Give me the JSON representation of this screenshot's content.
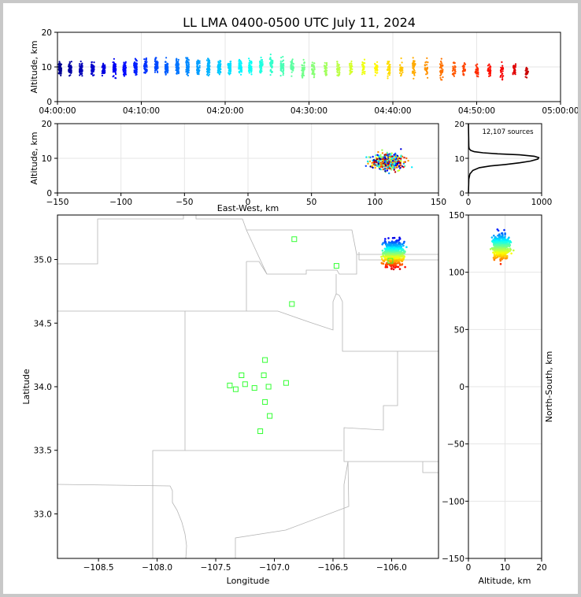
{
  "figure": {
    "title": "LL LMA 0400-0500 UTC July 11, 2024",
    "source_count_label": "12,107 sources"
  },
  "chart_data": [
    {
      "panel": "altitude-vs-time",
      "type": "scatter",
      "xlabel": "",
      "ylabel": "Altitude, km",
      "xlim": [
        "04:00:00",
        "05:00:00"
      ],
      "ylim": [
        0,
        20
      ],
      "xticks": [
        "04:00:00",
        "04:10:00",
        "04:20:00",
        "04:30:00",
        "04:40:00",
        "04:50:00",
        "05:00:00"
      ],
      "yticks": [
        "0",
        "10",
        "20"
      ],
      "color_by": "time",
      "colormap": [
        "#00008b",
        "#0000ff",
        "#0080ff",
        "#00ffff",
        "#80ff80",
        "#ffff00",
        "#ff8000",
        "#ff0000",
        "#8b0000"
      ],
      "flash_clusters": [
        {
          "minute": 0.3,
          "center_km": 9.5,
          "spread_km": 2.5,
          "n": 60
        },
        {
          "minute": 1.5,
          "center_km": 9.5,
          "spread_km": 2.5,
          "n": 55
        },
        {
          "minute": 2.8,
          "center_km": 9.5,
          "spread_km": 2.5,
          "n": 50
        },
        {
          "minute": 4.2,
          "center_km": 9.5,
          "spread_km": 2.5,
          "n": 55
        },
        {
          "minute": 5.5,
          "center_km": 9.5,
          "spread_km": 2.5,
          "n": 50
        },
        {
          "minute": 6.8,
          "center_km": 9.5,
          "spread_km": 3,
          "n": 55
        },
        {
          "minute": 8.0,
          "center_km": 9.5,
          "spread_km": 3,
          "n": 60
        },
        {
          "minute": 9.3,
          "center_km": 10,
          "spread_km": 3,
          "n": 60
        },
        {
          "minute": 10.5,
          "center_km": 10,
          "spread_km": 3,
          "n": 55
        },
        {
          "minute": 11.8,
          "center_km": 10,
          "spread_km": 3,
          "n": 60
        },
        {
          "minute": 13.0,
          "center_km": 10,
          "spread_km": 3,
          "n": 60
        },
        {
          "minute": 14.3,
          "center_km": 10,
          "spread_km": 3,
          "n": 65
        },
        {
          "minute": 15.5,
          "center_km": 10,
          "spread_km": 3,
          "n": 60
        },
        {
          "minute": 16.8,
          "center_km": 10,
          "spread_km": 3,
          "n": 55
        },
        {
          "minute": 18.0,
          "center_km": 10,
          "spread_km": 3,
          "n": 60
        },
        {
          "minute": 19.3,
          "center_km": 10,
          "spread_km": 3,
          "n": 60
        },
        {
          "minute": 20.5,
          "center_km": 10,
          "spread_km": 3,
          "n": 55
        },
        {
          "minute": 21.8,
          "center_km": 10,
          "spread_km": 3,
          "n": 55
        },
        {
          "minute": 23.0,
          "center_km": 10,
          "spread_km": 3,
          "n": 55
        },
        {
          "minute": 24.3,
          "center_km": 10.5,
          "spread_km": 3,
          "n": 55
        },
        {
          "minute": 25.5,
          "center_km": 10.5,
          "spread_km": 3,
          "n": 50
        },
        {
          "minute": 26.8,
          "center_km": 10,
          "spread_km": 3,
          "n": 50
        },
        {
          "minute": 28.0,
          "center_km": 10,
          "spread_km": 3,
          "n": 45
        },
        {
          "minute": 29.3,
          "center_km": 9.5,
          "spread_km": 3,
          "n": 45
        },
        {
          "minute": 30.5,
          "center_km": 9.5,
          "spread_km": 3,
          "n": 40
        },
        {
          "minute": 32.0,
          "center_km": 9.5,
          "spread_km": 3,
          "n": 35
        },
        {
          "minute": 33.5,
          "center_km": 9.5,
          "spread_km": 3,
          "n": 35
        },
        {
          "minute": 35.0,
          "center_km": 9.5,
          "spread_km": 3,
          "n": 35
        },
        {
          "minute": 36.5,
          "center_km": 9.5,
          "spread_km": 3,
          "n": 30
        },
        {
          "minute": 38.0,
          "center_km": 9.5,
          "spread_km": 3,
          "n": 30
        },
        {
          "minute": 39.5,
          "center_km": 9.5,
          "spread_km": 3,
          "n": 30
        },
        {
          "minute": 41.0,
          "center_km": 9.5,
          "spread_km": 3,
          "n": 30
        },
        {
          "minute": 42.5,
          "center_km": 9.5,
          "spread_km": 4,
          "n": 40
        },
        {
          "minute": 44.0,
          "center_km": 9.5,
          "spread_km": 3,
          "n": 25
        },
        {
          "minute": 45.8,
          "center_km": 9.5,
          "spread_km": 4,
          "n": 35
        },
        {
          "minute": 47.3,
          "center_km": 9.5,
          "spread_km": 3,
          "n": 30
        },
        {
          "minute": 48.5,
          "center_km": 9,
          "spread_km": 3,
          "n": 30
        },
        {
          "minute": 50.0,
          "center_km": 9,
          "spread_km": 3,
          "n": 30
        },
        {
          "minute": 51.5,
          "center_km": 9,
          "spread_km": 3,
          "n": 30
        },
        {
          "minute": 53.0,
          "center_km": 9,
          "spread_km": 3,
          "n": 25
        },
        {
          "minute": 54.5,
          "center_km": 9,
          "spread_km": 3,
          "n": 30
        },
        {
          "minute": 56.0,
          "center_km": 8.5,
          "spread_km": 2,
          "n": 20
        }
      ]
    },
    {
      "panel": "altitude-vs-east-west",
      "type": "scatter",
      "xlabel": "East-West, km",
      "ylabel": "Altitude, km",
      "xlim": [
        -150,
        150
      ],
      "ylim": [
        0,
        20
      ],
      "xticks": [
        "−150",
        "−100",
        "−50",
        "0",
        "50",
        "100",
        "150"
      ],
      "yticks": [
        "0",
        "10",
        "20"
      ],
      "color_by": "time",
      "cluster": {
        "x_center_km": 110,
        "x_spread_km": 15,
        "alt_center_km": 9,
        "alt_spread_km": 3
      }
    },
    {
      "panel": "altitude-histogram",
      "type": "line",
      "xlim": [
        0,
        1000
      ],
      "ylim": [
        0,
        20
      ],
      "xticks": [
        "0",
        "1000"
      ],
      "yticks": [
        "0",
        "10",
        "20"
      ],
      "x": [
        0,
        5,
        20,
        60,
        150,
        300,
        500,
        700,
        850,
        950,
        960,
        900,
        700,
        400,
        200,
        80,
        30,
        10,
        5,
        0
      ],
      "y": [
        0,
        4,
        5.5,
        6.5,
        7.3,
        7.8,
        8.2,
        8.7,
        9.2,
        9.8,
        10.2,
        10.6,
        11.0,
        11.3,
        11.6,
        11.9,
        12.3,
        12.8,
        13.5,
        20
      ]
    },
    {
      "panel": "plan-view",
      "type": "scatter",
      "xlabel": "Longitude",
      "ylabel": "Latitude",
      "xlim": [
        -108.85,
        -105.6
      ],
      "ylim": [
        32.65,
        35.35
      ],
      "xticks": [
        "−108.5",
        "−108.0",
        "−107.5",
        "−107.0",
        "−106.5",
        "−106.0"
      ],
      "yticks": [
        "33.0",
        "33.5",
        "34.0",
        "34.5",
        "35.0"
      ],
      "cluster": {
        "lon_center": -105.98,
        "lon_spread": 0.12,
        "lat_center": 35.05,
        "lat_spread": 0.14
      },
      "stations": [
        {
          "lon": -106.83,
          "lat": 35.16
        },
        {
          "lon": -106.47,
          "lat": 34.95
        },
        {
          "lon": -106.85,
          "lat": 34.65
        },
        {
          "lon": -107.08,
          "lat": 34.21
        },
        {
          "lon": -107.28,
          "lat": 34.09
        },
        {
          "lon": -107.09,
          "lat": 34.09
        },
        {
          "lon": -107.38,
          "lat": 34.01
        },
        {
          "lon": -107.25,
          "lat": 34.02
        },
        {
          "lon": -107.33,
          "lat": 33.98
        },
        {
          "lon": -107.17,
          "lat": 33.99
        },
        {
          "lon": -107.05,
          "lat": 34.0
        },
        {
          "lon": -106.9,
          "lat": 34.03
        },
        {
          "lon": -107.08,
          "lat": 33.88
        },
        {
          "lon": -107.04,
          "lat": 33.77
        },
        {
          "lon": -107.12,
          "lat": 33.65
        },
        {
          "lon": -106.01,
          "lat": 34.99
        }
      ],
      "station_color": "#33ff33"
    },
    {
      "panel": "north-south-vs-altitude",
      "type": "scatter",
      "xlabel": "Altitude, km",
      "ylabel": "North-South, km",
      "xlim": [
        0,
        20
      ],
      "ylim": [
        -150,
        150
      ],
      "xticks": [
        "0",
        "10",
        "20"
      ],
      "yticks": [
        "−150",
        "−100",
        "−50",
        "0",
        "50",
        "100",
        "150"
      ],
      "cluster": {
        "alt_center_km": 9,
        "alt_spread_km": 3,
        "ns_center_km": 122,
        "ns_spread_km": 14
      }
    }
  ]
}
